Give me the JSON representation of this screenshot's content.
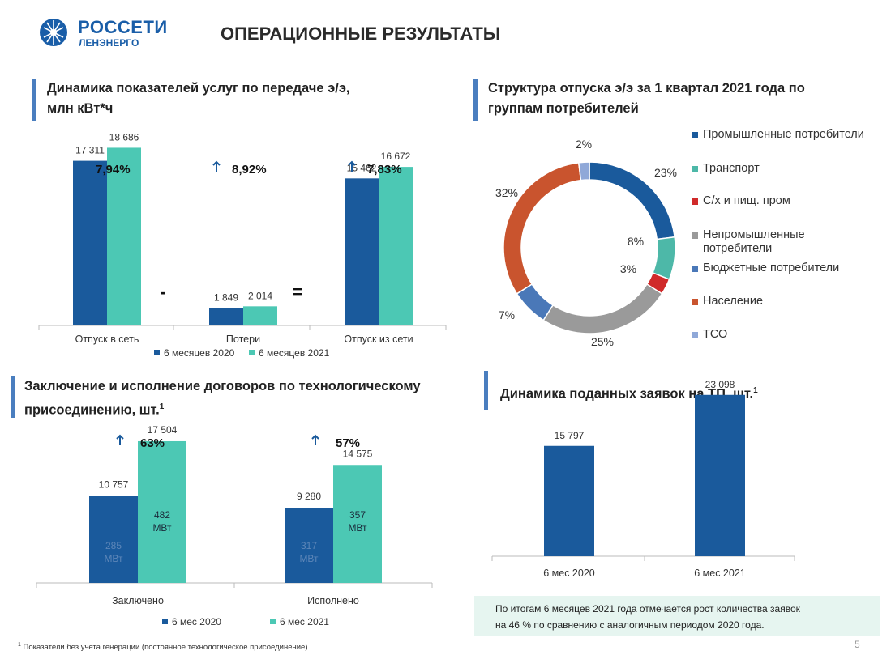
{
  "header": {
    "logo_main": "РОССЕТИ",
    "logo_sub": "ЛЕНЭНЕРГО",
    "title": "ОПЕРАЦИОННЫЕ РЕЗУЛЬТАТЫ"
  },
  "colors": {
    "dark_blue": "#1a5a9c",
    "teal": "#4cc8b4",
    "accent_bar": "#4a7ebf"
  },
  "sections": {
    "transmission_title_line1": "Динамика показателей услуг по передаче э/э,",
    "transmission_title_line2": "млн кВт*ч",
    "structure_title_line1": "Структура отпуска э/э за  1 квартал 2021 года по",
    "structure_title_line2": "группам потребителей",
    "contracts_title_line1": "Заключение и исполнение договоров по технологическому",
    "contracts_title_line2": "присоединению, шт.",
    "contracts_title_sup": "1",
    "applications_title": "Динамика поданных заявок на ТП, шт.",
    "applications_title_sup": "1"
  },
  "note": {
    "line1": "По итогам  6 месяцев 2021 года  отмечается рост количества заявок",
    "line2": "на 46 %  по  сравнению с аналогичным периодом 2020 года."
  },
  "footnote": {
    "sup": "1",
    "text": "Показатели без учета генерации (постоянное технологическое присоединение)."
  },
  "page_number": "5",
  "chart_data": [
    {
      "id": "transmission",
      "type": "bar",
      "categories": [
        "Отпуск в сеть",
        "Потери",
        "Отпуск из сети"
      ],
      "series": [
        {
          "name": "6 месяцев 2020",
          "values": [
            17311,
            1849,
            15462
          ],
          "labels": [
            "17 311",
            "1 849",
            "15 462"
          ]
        },
        {
          "name": "6 месяцев 2021",
          "values": [
            18686,
            2014,
            16672
          ],
          "labels": [
            "18 686",
            "2 014",
            "16 672"
          ]
        }
      ],
      "growth": [
        "7,94%",
        "8,92%",
        "7,83%"
      ],
      "operators": [
        "-",
        "="
      ],
      "ylim": [
        0,
        24000
      ],
      "legend_position": "bottom"
    },
    {
      "id": "structure",
      "type": "pie",
      "slices": [
        {
          "name": "Промышленные потребители",
          "value": 23,
          "label": "23%"
        },
        {
          "name": "Транспорт",
          "value": 8,
          "label": "8%"
        },
        {
          "name": "С/х и пищ. пром",
          "value": 3,
          "label": "3%"
        },
        {
          "name": "Непромышленные потребители",
          "value": 25,
          "label": "25%"
        },
        {
          "name": "Бюджетные потребители",
          "value": 7,
          "label": "7%"
        },
        {
          "name": "Население",
          "value": 32,
          "label": "32%"
        },
        {
          "name": "ТСО",
          "value": 2,
          "label": "2%"
        }
      ],
      "legend": [
        {
          "line1": "Промышленные потребители",
          "line2": "",
          "color": "#1a5a9c"
        },
        {
          "line1": "Транспорт",
          "line2": "",
          "color": "#4db8a8"
        },
        {
          "line1": "С/х и пищ. пром",
          "line2": "",
          "color": "#d02a2a"
        },
        {
          "line1": "Непромышленные",
          "line2": "потребители",
          "color": "#9a9a9a"
        },
        {
          "line1": "Бюджетные потребители",
          "line2": "",
          "color": "#4a78b8"
        },
        {
          "line1": "Население",
          "line2": "",
          "color": "#c9542e"
        },
        {
          "line1": "ТСО",
          "line2": "",
          "color": "#8fa8d8"
        }
      ],
      "legend_position": "right"
    },
    {
      "id": "contracts",
      "type": "bar",
      "categories": [
        "Заключено",
        "Исполнено"
      ],
      "series": [
        {
          "name": "6 мес 2020",
          "values": [
            10757,
            9280
          ],
          "labels": [
            "10 757",
            "9 280"
          ],
          "inner": [
            "285\nМВт",
            "317\nМВт"
          ]
        },
        {
          "name": "6 мес 2021",
          "values": [
            17504,
            14575
          ],
          "labels": [
            "17 504",
            "14 575"
          ],
          "inner": [
            "482\nМВт",
            "357\nМВт"
          ]
        }
      ],
      "growth": [
        "63%",
        "57%"
      ],
      "ylim": [
        0,
        20000
      ],
      "legend_position": "bottom"
    },
    {
      "id": "applications",
      "type": "bar",
      "categories": [
        "6 мес 2020",
        "6 мес 2021"
      ],
      "values": [
        15797,
        23098
      ],
      "labels": [
        "15 797",
        "23 098"
      ],
      "ylim": [
        0,
        24000
      ]
    }
  ]
}
